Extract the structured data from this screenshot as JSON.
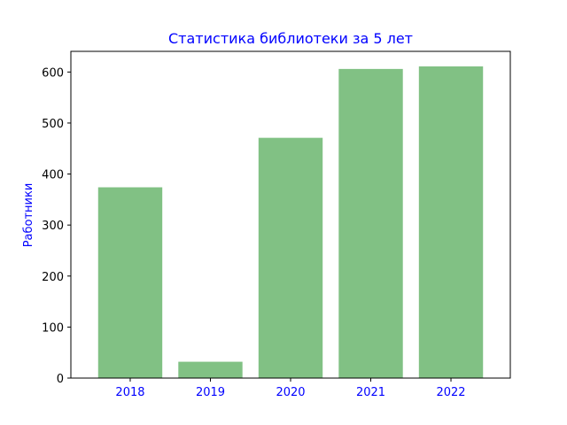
{
  "chart_data": {
    "type": "bar",
    "title": "Статистика библиотеки за 5 лет",
    "xlabel": "",
    "ylabel": "Работники",
    "categories": [
      "2018",
      "2019",
      "2020",
      "2021",
      "2022"
    ],
    "values": [
      374,
      32,
      471,
      606,
      611
    ],
    "yticks": [
      "0",
      "100",
      "200",
      "300",
      "400",
      "500",
      "600"
    ],
    "ylim": [
      0,
      640.5
    ],
    "bar_color": "#81c184",
    "title_color": "#0000ff",
    "ylabel_color": "#0000ff",
    "xtick_color": "#0000ff",
    "grid": false,
    "legend": false
  }
}
